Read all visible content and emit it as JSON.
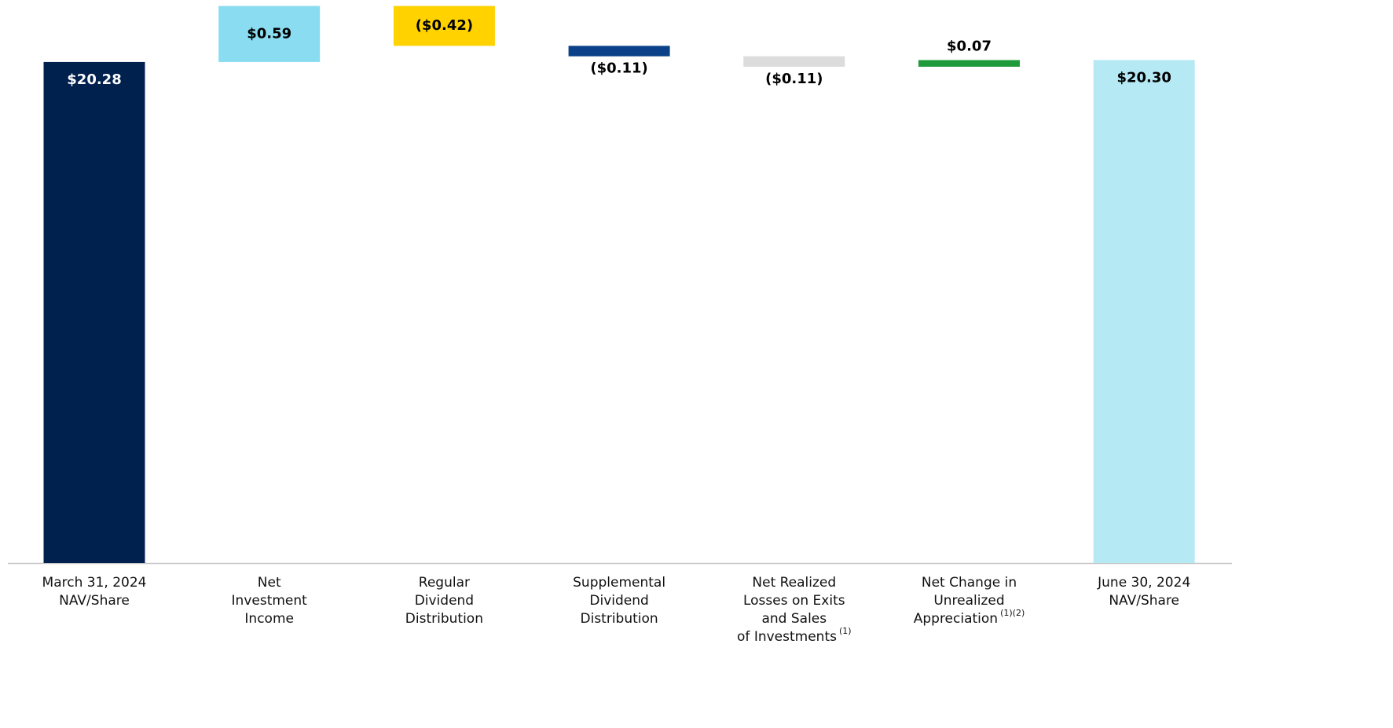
{
  "chart_data": {
    "type": "waterfall",
    "categories": [
      [
        "March 31, 2024",
        "NAV/Share"
      ],
      [
        "Net",
        "Investment",
        "Income"
      ],
      [
        "Regular",
        "Dividend",
        "Distribution"
      ],
      [
        "Supplemental",
        "Dividend",
        "Distribution"
      ],
      [
        "Net Realized",
        "Losses on Exits",
        "and Sales",
        "of Investments"
      ],
      [
        "Net Change in",
        "Unrealized",
        "Appreciation"
      ],
      [
        "June 30, 2024",
        "NAV/Share"
      ]
    ],
    "footnotes": [
      null,
      null,
      null,
      null,
      "(1)",
      "(1)(2)",
      null
    ],
    "values": [
      20.28,
      0.59,
      -0.42,
      -0.11,
      -0.11,
      0.07,
      20.3
    ],
    "value_labels": [
      "$20.28",
      "$0.59",
      "($0.42)",
      "($0.11)",
      "($0.11)",
      "$0.07",
      "$20.30"
    ],
    "is_total": [
      true,
      false,
      false,
      false,
      false,
      false,
      true
    ],
    "colors": [
      "#00204e",
      "#8adcf1",
      "#ffd200",
      "#0a4188",
      "#dcdcdc",
      "#1f9a3b",
      "#b5e9f4"
    ],
    "label_colors": [
      "#ffffff",
      "#000000",
      "#000000",
      "#000000",
      "#000000",
      "#000000",
      "#000000"
    ],
    "ylim": [
      15,
      20.9
    ]
  }
}
